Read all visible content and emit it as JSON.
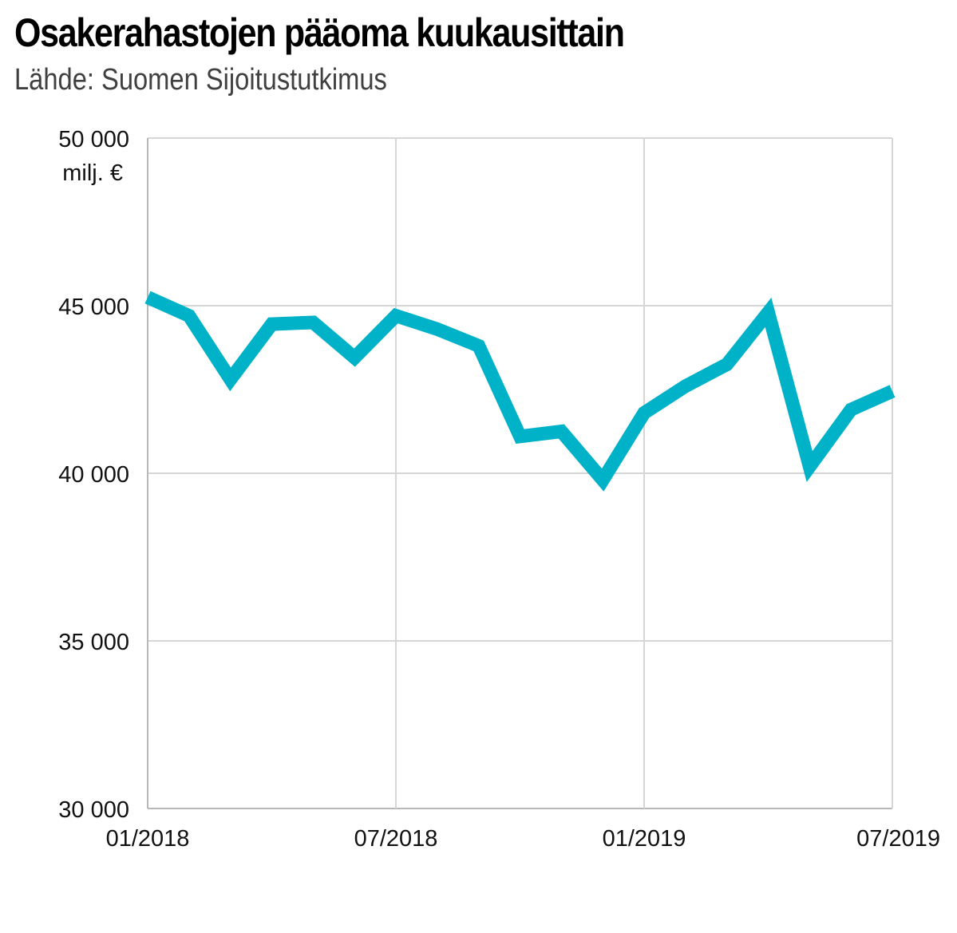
{
  "chart_data": {
    "type": "line",
    "title": "Osakerahastojen pääoma kuukausittain",
    "subtitle": "Lähde: Suomen Sijoitustutkimus",
    "unit_label": "milj. €",
    "x_tick_labels": [
      "01/2018",
      "07/2018",
      "01/2019",
      "07/2019"
    ],
    "y_tick_labels": [
      "30 000",
      "35 000",
      "40 000",
      "45 000",
      "50 000"
    ],
    "y_ticks": [
      30000,
      35000,
      40000,
      45000,
      50000
    ],
    "ylim": [
      30000,
      50000
    ],
    "x_count": 19,
    "grid": true,
    "line_color": "#00b2c8",
    "x": [
      "01/2018",
      "02/2018",
      "03/2018",
      "04/2018",
      "05/2018",
      "06/2018",
      "07/2018",
      "08/2018",
      "09/2018",
      "10/2018",
      "11/2018",
      "12/2018",
      "01/2019",
      "02/2019",
      "03/2019",
      "04/2019",
      "05/2019",
      "06/2019",
      "07/2019"
    ],
    "series": [
      {
        "values": [
          45250,
          44700,
          42800,
          44450,
          44500,
          43450,
          44700,
          44300,
          43800,
          41100,
          41250,
          39800,
          41800,
          42600,
          43250,
          44800,
          40200,
          41900,
          42450
        ]
      }
    ]
  }
}
